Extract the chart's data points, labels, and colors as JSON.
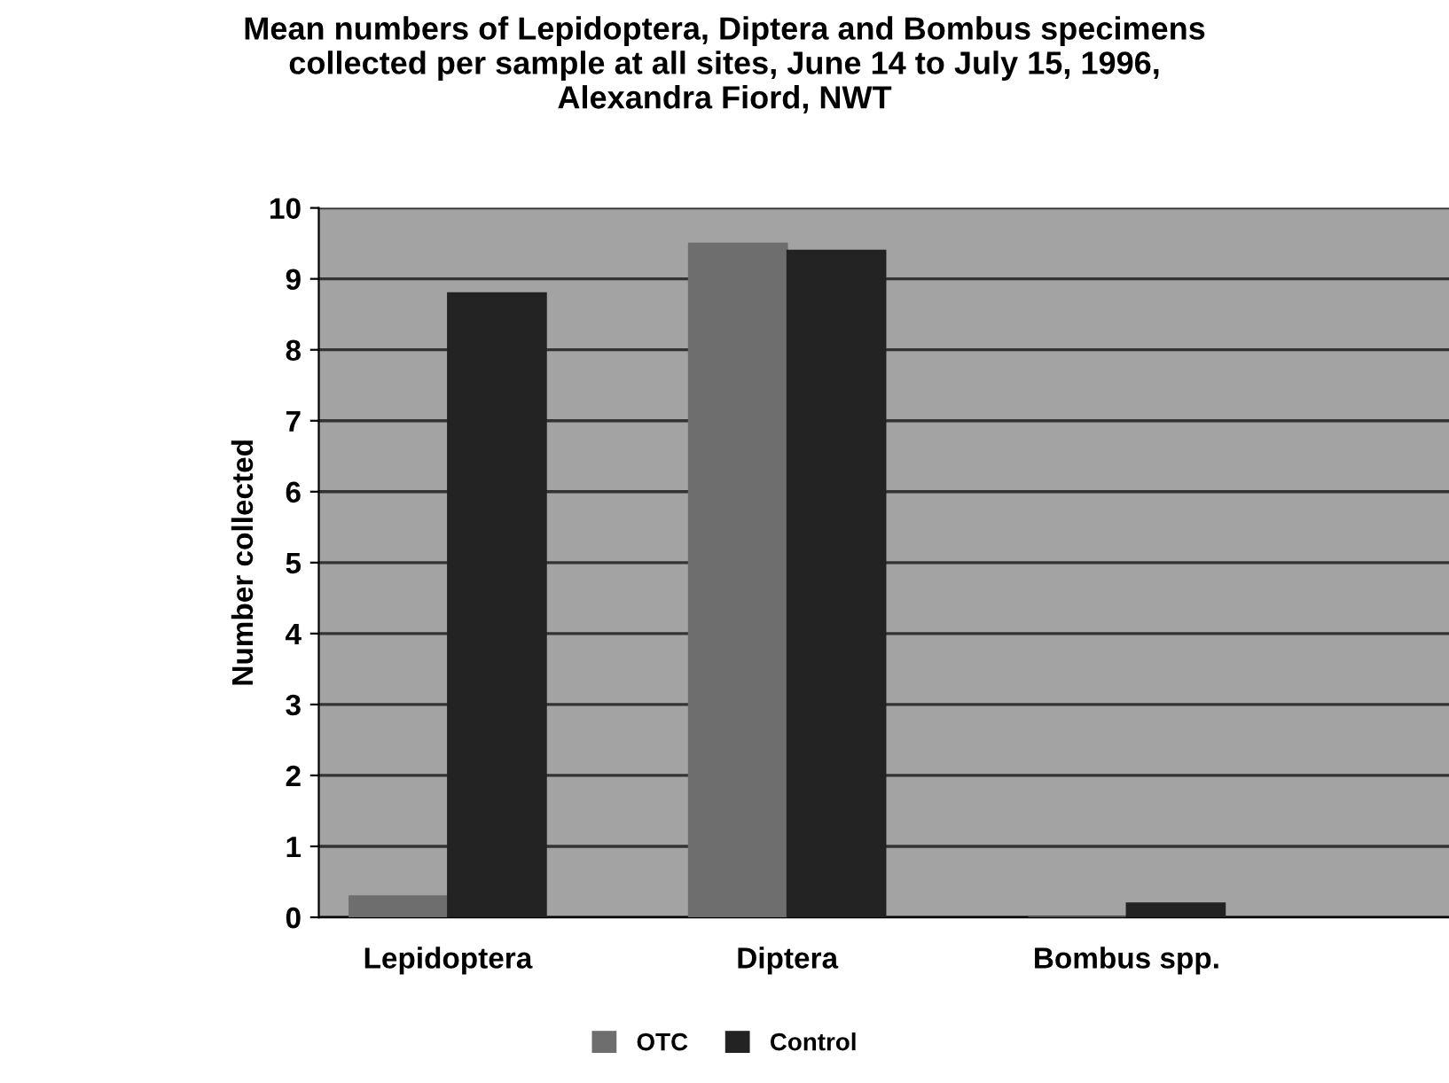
{
  "chart_data": {
    "type": "bar",
    "title": "Mean numbers of Lepidoptera, Diptera and Bombus specimens\ncollected per sample at all sites, June 14 to July 15, 1996,\nAlexandra Fiord, NWT",
    "ylabel": "Number collected",
    "categories": [
      "Lepidoptera",
      "Diptera",
      "Bombus spp."
    ],
    "series": [
      {
        "name": "OTC",
        "color": "#6e6e6e",
        "values": [
          0.3,
          9.5,
          0
        ]
      },
      {
        "name": "Control",
        "color": "#232323",
        "values": [
          8.8,
          9.4,
          0.2
        ]
      }
    ],
    "ylim": [
      0,
      10
    ],
    "yticks": [
      0,
      1,
      2,
      3,
      4,
      5,
      6,
      7,
      8,
      9,
      10
    ],
    "grid": "y",
    "legend": "bottom"
  }
}
